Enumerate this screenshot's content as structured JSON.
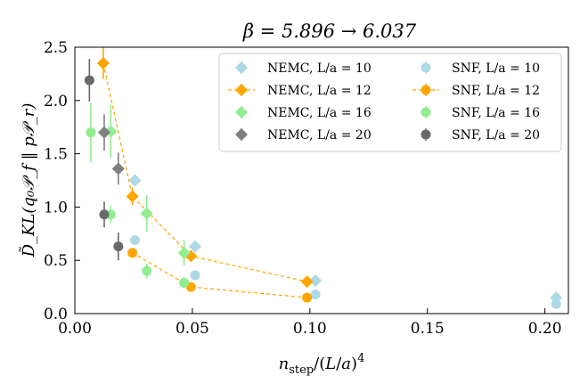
{
  "chart_data": {
    "type": "scatter",
    "title": "β = 5.896 → 6.037",
    "xlabel": "n_step/(L/a)^4",
    "ylabel": "D̃_KL(q₀𝒫_f ‖ p𝒫_r)",
    "xlim": [
      0.0,
      0.21
    ],
    "ylim": [
      0.0,
      2.5
    ],
    "xticks": [
      0.0,
      0.05,
      0.1,
      0.15,
      0.2
    ],
    "xtick_labels": [
      "0.00",
      "0.05",
      "0.10",
      "0.15",
      "0.20"
    ],
    "yticks": [
      0.0,
      0.5,
      1.0,
      1.5,
      2.0,
      2.5
    ],
    "ytick_labels": [
      "0.0",
      "0.5",
      "1.0",
      "1.5",
      "2.0",
      "2.5"
    ],
    "legend_position": "top-right",
    "series": [
      {
        "name": "NEMC, L/a = 10",
        "method": "NEMC",
        "La": 10,
        "marker": "diamond",
        "color": "#add8e6",
        "line": false,
        "points": [
          {
            "x": 0.0256,
            "y": 1.25,
            "err": 0.03
          },
          {
            "x": 0.0512,
            "y": 0.63,
            "err": 0.02
          },
          {
            "x": 0.1024,
            "y": 0.31,
            "err": 0.02
          },
          {
            "x": 0.2048,
            "y": 0.15,
            "err": 0.01
          }
        ]
      },
      {
        "name": "NEMC, L/a = 12",
        "method": "NEMC",
        "La": 12,
        "marker": "diamond",
        "color": "#ffa500",
        "line": true,
        "points": [
          {
            "x": 0.0121,
            "y": 2.35,
            "err": 0.15
          },
          {
            "x": 0.0245,
            "y": 1.1,
            "err": 0.08
          },
          {
            "x": 0.0494,
            "y": 0.54,
            "err": 0.05
          },
          {
            "x": 0.0988,
            "y": 0.3,
            "err": 0.03
          }
        ]
      },
      {
        "name": "NEMC, L/a = 16",
        "method": "NEMC",
        "La": 16,
        "marker": "diamond",
        "color": "#90ee90",
        "line": false,
        "points": [
          {
            "x": 0.0153,
            "y": 1.71,
            "err": 0.25
          },
          {
            "x": 0.0306,
            "y": 0.94,
            "err": 0.17
          },
          {
            "x": 0.0465,
            "y": 0.57,
            "err": 0.12
          }
        ]
      },
      {
        "name": "NEMC, L/a = 20",
        "method": "NEMC",
        "La": 20,
        "marker": "diamond",
        "color": "#808080",
        "line": false,
        "points": [
          {
            "x": 0.0125,
            "y": 1.7,
            "err": 0.17
          },
          {
            "x": 0.0185,
            "y": 1.36,
            "err": 0.15
          }
        ]
      },
      {
        "name": "SNF, L/a = 10",
        "method": "SNF",
        "La": 10,
        "marker": "circle",
        "color": "#add8e6",
        "line": false,
        "points": [
          {
            "x": 0.0256,
            "y": 0.69,
            "err": 0.02
          },
          {
            "x": 0.0512,
            "y": 0.36,
            "err": 0.02
          },
          {
            "x": 0.1024,
            "y": 0.18,
            "err": 0.01
          },
          {
            "x": 0.2048,
            "y": 0.09,
            "err": 0.01
          }
        ]
      },
      {
        "name": "SNF, L/a = 12",
        "method": "SNF",
        "La": 12,
        "marker": "circle",
        "color": "#ffa500",
        "line": true,
        "points": [
          {
            "x": 0.0245,
            "y": 0.57,
            "err": 0.02
          },
          {
            "x": 0.0494,
            "y": 0.25,
            "err": 0.02
          },
          {
            "x": 0.0988,
            "y": 0.15,
            "err": 0.01
          }
        ]
      },
      {
        "name": "SNF, L/a = 16",
        "method": "SNF",
        "La": 16,
        "marker": "circle",
        "color": "#90ee90",
        "line": false,
        "points": [
          {
            "x": 0.0068,
            "y": 1.7,
            "err": 0.28
          },
          {
            "x": 0.0153,
            "y": 0.93,
            "err": 0.08
          },
          {
            "x": 0.0306,
            "y": 0.4,
            "err": 0.07
          },
          {
            "x": 0.0465,
            "y": 0.29,
            "err": 0.05
          }
        ]
      },
      {
        "name": "SNF, L/a = 20",
        "method": "SNF",
        "La": 20,
        "marker": "circle",
        "color": "#696969",
        "line": false,
        "points": [
          {
            "x": 0.0062,
            "y": 2.19,
            "err": 0.2
          },
          {
            "x": 0.0125,
            "y": 0.93,
            "err": 0.12
          },
          {
            "x": 0.0185,
            "y": 0.63,
            "err": 0.13
          }
        ]
      }
    ]
  }
}
